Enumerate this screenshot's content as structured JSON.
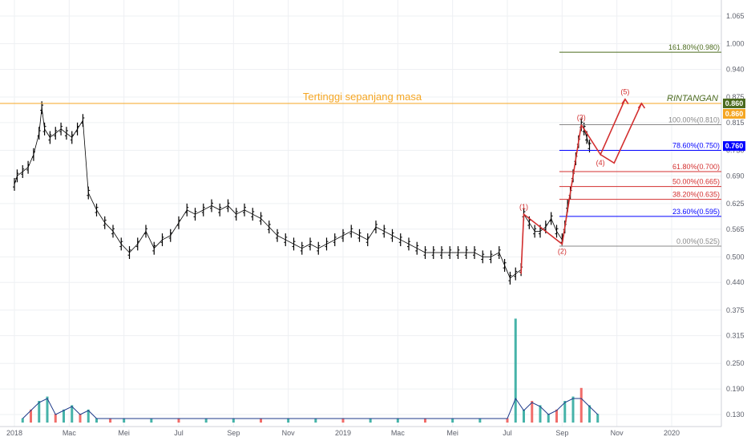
{
  "chart_data": {
    "type": "candlestick",
    "y_axis": {
      "side": "right",
      "ticks": [
        "1.065",
        "1.000",
        "0.940",
        "0.875",
        "0.815",
        "0.750",
        "0.690",
        "0.625",
        "0.565",
        "0.500",
        "0.440",
        "0.375",
        "0.315",
        "0.250",
        "0.190",
        "0.130"
      ],
      "tick_values": [
        1.065,
        1.0,
        0.94,
        0.875,
        0.815,
        0.75,
        0.69,
        0.625,
        0.565,
        0.5,
        0.44,
        0.375,
        0.315,
        0.25,
        0.19,
        0.13
      ]
    },
    "x_axis": {
      "ticks": [
        "2018",
        "Mac",
        "Mei",
        "Jul",
        "Sep",
        "Nov",
        "2019",
        "Mac",
        "Mei",
        "Jul",
        "Sep",
        "Nov",
        "2020"
      ],
      "tick_months": [
        0,
        2,
        4,
        6,
        8,
        10,
        12,
        14,
        16,
        18,
        20,
        22,
        24
      ]
    },
    "price_badges": [
      {
        "label": "0.860",
        "value": 0.86,
        "color": "#4c6b1f"
      },
      {
        "label": "0.860",
        "value": 0.86,
        "color": "#f5a623"
      },
      {
        "label": "0.760",
        "value": 0.76,
        "color": "#0000ff"
      }
    ],
    "annotations": {
      "all_time_high": {
        "text": "Tertinggi sepanjang masa",
        "value": 0.86,
        "color": "#f5a623"
      },
      "resistance": {
        "text": "RINTANGAN",
        "color": "#4c6b1f"
      }
    },
    "fibonacci": [
      {
        "label": "161.80%(0.980)",
        "value": 0.98,
        "color": "#4c6b1f"
      },
      {
        "label": "100.00%(0.810)",
        "value": 0.81,
        "color": "#888888"
      },
      {
        "label": "78.60%(0.750)",
        "value": 0.75,
        "color": "#0000ff"
      },
      {
        "label": "61.80%(0.700)",
        "value": 0.7,
        "color": "#d32f2f"
      },
      {
        "label": "50.00%(0.665)",
        "value": 0.665,
        "color": "#d32f2f"
      },
      {
        "label": "38.20%(0.635)",
        "value": 0.635,
        "color": "#d32f2f"
      },
      {
        "label": "23.60%(0.595)",
        "value": 0.595,
        "color": "#0000ff"
      },
      {
        "label": "0.00%(0.525)",
        "value": 0.525,
        "color": "#888888"
      }
    ],
    "waves": [
      {
        "label": "(1)",
        "month": 18.6,
        "value": 0.6
      },
      {
        "label": "(2)",
        "month": 20.0,
        "value": 0.53
      },
      {
        "label": "(3)",
        "month": 20.7,
        "value": 0.81
      },
      {
        "label": "(4)",
        "month": 21.4,
        "value": 0.74
      },
      {
        "label": "(5)",
        "month": 22.3,
        "value": 0.87
      }
    ],
    "price_series": {
      "months": [
        0,
        0.1,
        0.3,
        0.5,
        0.7,
        0.9,
        1.0,
        1.1,
        1.3,
        1.5,
        1.7,
        1.9,
        2.1,
        2.3,
        2.5,
        2.7,
        3.0,
        3.3,
        3.6,
        3.9,
        4.2,
        4.5,
        4.8,
        5.1,
        5.4,
        5.7,
        6.0,
        6.3,
        6.6,
        6.9,
        7.2,
        7.5,
        7.8,
        8.1,
        8.4,
        8.7,
        9.0,
        9.3,
        9.6,
        9.9,
        10.2,
        10.5,
        10.8,
        11.1,
        11.4,
        11.7,
        12.0,
        12.3,
        12.6,
        12.9,
        13.2,
        13.5,
        13.8,
        14.1,
        14.4,
        14.7,
        15.0,
        15.3,
        15.6,
        15.9,
        16.2,
        16.5,
        16.8,
        17.1,
        17.4,
        17.7,
        17.9,
        18.1,
        18.3,
        18.5,
        18.6,
        18.8,
        19.0,
        19.2,
        19.4,
        19.6,
        19.8,
        20.0,
        20.1,
        20.2,
        20.3,
        20.4,
        20.5,
        20.6,
        20.7,
        20.8,
        20.9,
        21.0
      ],
      "values": [
        0.67,
        0.69,
        0.7,
        0.71,
        0.74,
        0.79,
        0.85,
        0.8,
        0.78,
        0.79,
        0.8,
        0.79,
        0.78,
        0.8,
        0.82,
        0.65,
        0.61,
        0.58,
        0.56,
        0.53,
        0.51,
        0.53,
        0.56,
        0.52,
        0.54,
        0.55,
        0.58,
        0.61,
        0.6,
        0.61,
        0.62,
        0.61,
        0.62,
        0.6,
        0.61,
        0.6,
        0.59,
        0.57,
        0.55,
        0.54,
        0.53,
        0.52,
        0.53,
        0.52,
        0.53,
        0.54,
        0.55,
        0.56,
        0.55,
        0.54,
        0.57,
        0.56,
        0.55,
        0.54,
        0.53,
        0.52,
        0.51,
        0.51,
        0.51,
        0.51,
        0.51,
        0.51,
        0.51,
        0.5,
        0.5,
        0.51,
        0.48,
        0.45,
        0.46,
        0.47,
        0.6,
        0.58,
        0.56,
        0.56,
        0.57,
        0.59,
        0.56,
        0.54,
        0.57,
        0.62,
        0.65,
        0.69,
        0.73,
        0.77,
        0.81,
        0.8,
        0.78,
        0.76
      ]
    },
    "volume": {
      "months": [
        0.3,
        0.6,
        0.9,
        1.2,
        1.5,
        1.8,
        2.1,
        2.4,
        2.7,
        3.0,
        3.5,
        4.0,
        5.0,
        6.0,
        7.0,
        8.0,
        9.0,
        10.0,
        11.0,
        12.0,
        13.0,
        14.0,
        15.0,
        16.0,
        17.0,
        18.0,
        18.3,
        18.6,
        18.9,
        19.2,
        19.5,
        19.8,
        20.1,
        20.4,
        20.7,
        21.0,
        21.3
      ],
      "values": [
        0.01,
        0.03,
        0.05,
        0.06,
        0.02,
        0.03,
        0.04,
        0.02,
        0.03,
        0.01,
        0.01,
        0.01,
        0.01,
        0.01,
        0.01,
        0.01,
        0.01,
        0.01,
        0.01,
        0.01,
        0.01,
        0.01,
        0.01,
        0.01,
        0.01,
        0.01,
        0.24,
        0.03,
        0.05,
        0.04,
        0.02,
        0.03,
        0.05,
        0.06,
        0.08,
        0.04,
        0.02
      ]
    }
  }
}
